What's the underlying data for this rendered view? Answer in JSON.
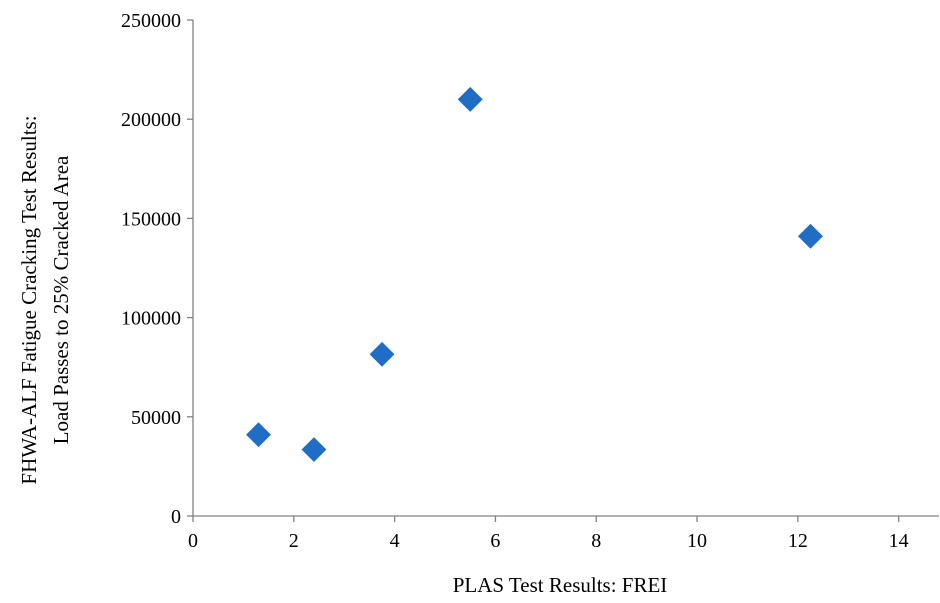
{
  "chart_data": {
    "type": "scatter",
    "xlabel": "PLAS Test Results: FREI",
    "ylabel_lines": [
      "FHWA-ALF Fatigue Cracking Test Results:",
      "Load Passes to 25% Cracked Area"
    ],
    "xlim": [
      0,
      14.8
    ],
    "ylim": [
      0,
      250000
    ],
    "x_ticks": [
      0,
      2,
      4,
      6,
      8,
      10,
      12,
      14
    ],
    "y_ticks": [
      0,
      50000,
      100000,
      150000,
      200000,
      250000
    ],
    "x_tick_labels": [
      "0",
      "2",
      "4",
      "6",
      "8",
      "10",
      "12",
      "14"
    ],
    "y_tick_labels": [
      "0",
      "50000",
      "100000",
      "150000",
      "200000",
      "250000"
    ],
    "grid": false,
    "legend": "none",
    "marker": "diamond",
    "series": [
      {
        "color": "#1f6dc4",
        "points": [
          {
            "x": 1.3,
            "y": 41000
          },
          {
            "x": 2.4,
            "y": 33500
          },
          {
            "x": 3.75,
            "y": 81500
          },
          {
            "x": 5.5,
            "y": 210000
          },
          {
            "x": 12.25,
            "y": 141000
          }
        ]
      }
    ]
  }
}
